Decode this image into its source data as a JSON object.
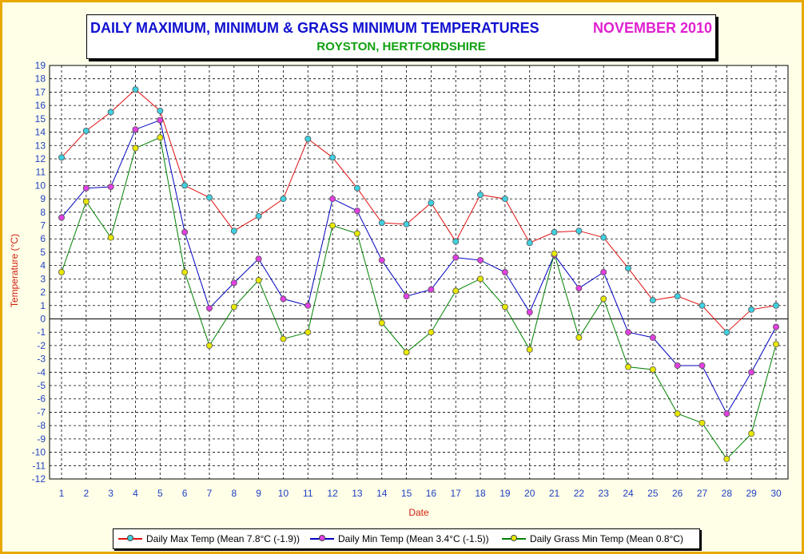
{
  "title": {
    "main": "DAILY MAXIMUM, MINIMUM & GRASS MINIMUM TEMPERATURES",
    "month": "NOVEMBER 2010",
    "subtitle": "ROYSTON, HERTFORDSHIRE"
  },
  "colors": {
    "max_line": "#e01010",
    "max_marker": "#40d0e0",
    "min_line": "#0000c0",
    "min_marker": "#e040e0",
    "grass_line": "#008000",
    "grass_marker": "#e8e800",
    "axis_text": "#2040c0",
    "axis_title": "#d02010"
  },
  "chart_data": {
    "type": "line",
    "xlabel": "Date",
    "ylabel": "Temperature (°C)",
    "xlim": [
      1,
      30
    ],
    "ylim": [
      -12,
      19
    ],
    "grid": true,
    "legend_position": "bottom",
    "x": [
      1,
      2,
      3,
      4,
      5,
      6,
      7,
      8,
      9,
      10,
      11,
      12,
      13,
      14,
      15,
      16,
      17,
      18,
      19,
      20,
      21,
      22,
      23,
      24,
      25,
      26,
      27,
      28,
      29,
      30
    ],
    "series": [
      {
        "name": "Daily Max Temp (Mean 7.8°C (-1.9))",
        "values": [
          12.1,
          14.1,
          15.5,
          17.2,
          15.6,
          10.0,
          9.1,
          6.6,
          7.7,
          9.0,
          13.5,
          12.1,
          9.8,
          7.2,
          7.1,
          8.7,
          5.8,
          9.3,
          9.0,
          5.7,
          6.5,
          6.6,
          6.1,
          3.8,
          1.4,
          1.7,
          1.0,
          -1.0,
          0.7,
          1.0
        ]
      },
      {
        "name": "Daily Min Temp (Mean 3.4°C (-1.5))",
        "values": [
          7.6,
          9.8,
          9.9,
          14.2,
          14.9,
          6.5,
          0.8,
          2.7,
          4.5,
          1.5,
          1.0,
          9.0,
          8.1,
          4.4,
          1.7,
          2.2,
          4.6,
          4.4,
          3.5,
          0.5,
          4.8,
          2.3,
          3.5,
          -1.0,
          -1.4,
          -3.5,
          -3.5,
          -7.1,
          -4.0,
          -0.6
        ]
      },
      {
        "name": "Daily Grass Min Temp (Mean 0.8°C)",
        "values": [
          3.5,
          8.8,
          6.1,
          12.8,
          13.6,
          3.5,
          -2.0,
          0.9,
          2.9,
          -1.5,
          -1.0,
          7.0,
          6.4,
          -0.3,
          -2.5,
          -1.0,
          2.1,
          3.0,
          0.9,
          -2.3,
          4.9,
          -1.4,
          1.5,
          -3.6,
          -3.8,
          -7.1,
          -7.8,
          -10.5,
          -8.6,
          -1.9
        ]
      }
    ]
  }
}
